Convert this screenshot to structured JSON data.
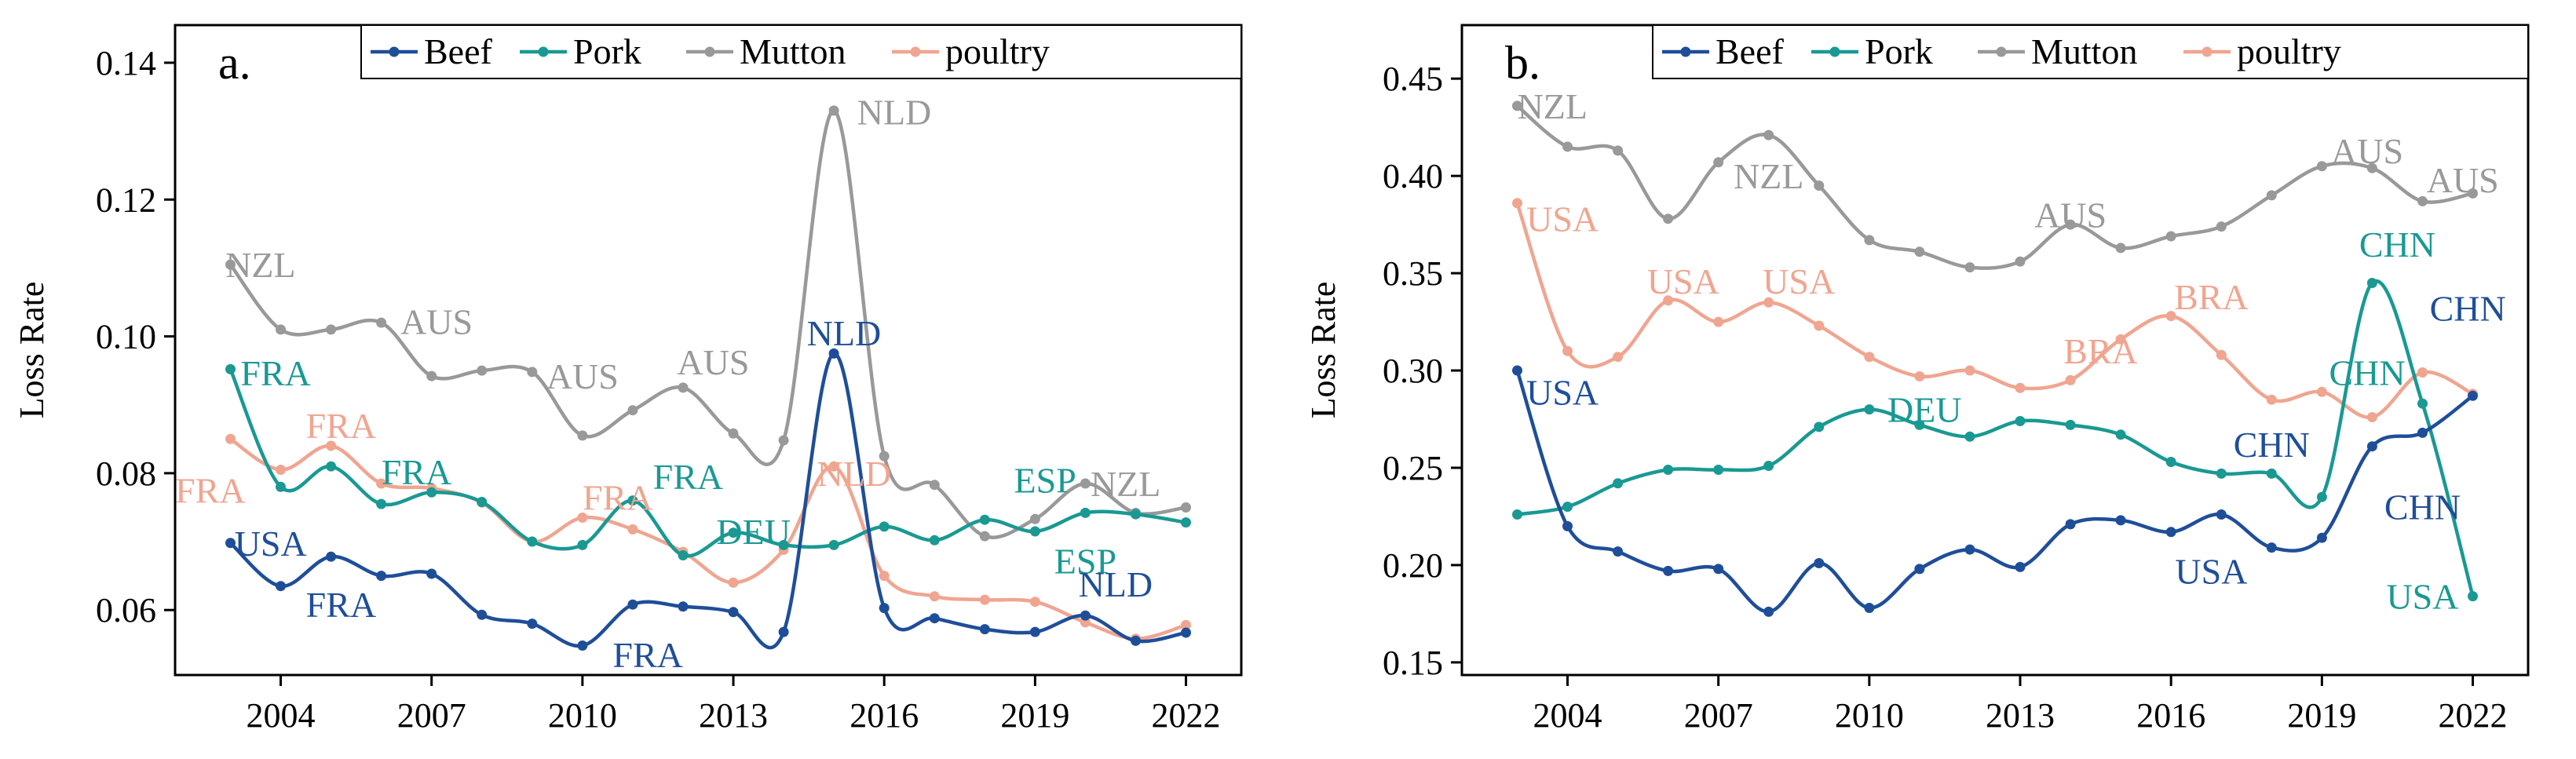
{
  "chart_data": [
    {
      "type": "line",
      "panel_label": "a.",
      "ylabel": "Loss Rate",
      "xlabel": "",
      "x": [
        2003,
        2004,
        2005,
        2006,
        2007,
        2008,
        2009,
        2010,
        2011,
        2012,
        2013,
        2014,
        2015,
        2016,
        2017,
        2018,
        2019,
        2020,
        2021,
        2022
      ],
      "xlim": [
        2001.9,
        2023.1
      ],
      "ylim": [
        0.0505,
        0.1455
      ],
      "xticks": [
        2004,
        2007,
        2010,
        2013,
        2016,
        2019,
        2022
      ],
      "xtick_labels": [
        "2004",
        "2007",
        "2010",
        "2013",
        "2016",
        "2019",
        "2022"
      ],
      "yticks": [
        0.06,
        0.08,
        0.1,
        0.12,
        0.14
      ],
      "ytick_labels": [
        "0.06",
        "0.08",
        "0.10",
        "0.12",
        "0.14"
      ],
      "legend": [
        "Beef",
        "Pork",
        "Mutton",
        "poultry"
      ],
      "legend_position": "top-right",
      "series": [
        {
          "name": "Beef",
          "color": "#1f4e99",
          "values": [
            0.0698,
            0.0635,
            0.0678,
            0.065,
            0.0653,
            0.0593,
            0.058,
            0.0548,
            0.0608,
            0.0605,
            0.0597,
            0.0568,
            0.0975,
            0.0603,
            0.0588,
            0.0572,
            0.0568,
            0.0592,
            0.0555,
            0.0567
          ]
        },
        {
          "name": "Pork",
          "color": "#1a9993",
          "values": [
            0.0952,
            0.078,
            0.081,
            0.0755,
            0.0772,
            0.0758,
            0.07,
            0.0695,
            0.076,
            0.068,
            0.0713,
            0.0695,
            0.0695,
            0.0722,
            0.0702,
            0.0732,
            0.0715,
            0.0742,
            0.074,
            0.0728
          ]
        },
        {
          "name": "Mutton",
          "color": "#999999",
          "values": [
            0.1105,
            0.101,
            0.101,
            0.102,
            0.0942,
            0.095,
            0.0948,
            0.0855,
            0.0892,
            0.0925,
            0.0858,
            0.0848,
            0.133,
            0.0825,
            0.0783,
            0.0708,
            0.0733,
            0.0785,
            0.0742,
            0.075
          ]
        },
        {
          "name": "poultry",
          "color": "#f0a590",
          "values": [
            0.085,
            0.0805,
            0.084,
            0.0785,
            0.0778,
            0.0757,
            0.07,
            0.0735,
            0.0718,
            0.0685,
            0.064,
            0.0688,
            0.081,
            0.065,
            0.062,
            0.0615,
            0.0612,
            0.0582,
            0.0558,
            0.0578
          ]
        }
      ],
      "annotations": [
        {
          "text": "NZL",
          "series": "Mutton",
          "x": 2003.6,
          "y": 0.1105
        },
        {
          "text": "AUS",
          "series": "Mutton",
          "x": 2007.1,
          "y": 0.1022
        },
        {
          "text": "AUS",
          "series": "Mutton",
          "x": 2010.0,
          "y": 0.0942
        },
        {
          "text": "AUS",
          "series": "Mutton",
          "x": 2012.6,
          "y": 0.0963
        },
        {
          "text": "NLD",
          "series": "Mutton",
          "x": 2016.2,
          "y": 0.1328
        },
        {
          "text": "NZL",
          "series": "Mutton",
          "x": 2020.8,
          "y": 0.0785
        },
        {
          "text": "FRA",
          "series": "Pork",
          "x": 2003.9,
          "y": 0.0947
        },
        {
          "text": "FRA",
          "series": "Pork",
          "x": 2006.7,
          "y": 0.0802
        },
        {
          "text": "FRA",
          "series": "Pork",
          "x": 2012.1,
          "y": 0.0795
        },
        {
          "text": "DEU",
          "series": "Pork",
          "x": 2013.4,
          "y": 0.0715
        },
        {
          "text": "ESP",
          "series": "Pork",
          "x": 2019.2,
          "y": 0.079
        },
        {
          "text": "ESP",
          "series": "Pork",
          "x": 2020.0,
          "y": 0.0672
        },
        {
          "text": "FRA",
          "series": "poultry",
          "x": 2005.2,
          "y": 0.087
        },
        {
          "text": "FRA",
          "series": "poultry",
          "x": 2002.6,
          "y": 0.0775
        },
        {
          "text": "FRA",
          "series": "poultry",
          "x": 2010.7,
          "y": 0.0765
        },
        {
          "text": "NLD",
          "series": "poultry",
          "x": 2015.4,
          "y": 0.08
        },
        {
          "text": "USA",
          "series": "Beef",
          "x": 2003.8,
          "y": 0.0698
        },
        {
          "text": "FRA",
          "series": "Beef",
          "x": 2005.2,
          "y": 0.0608
        },
        {
          "text": "FRA",
          "series": "Beef",
          "x": 2011.3,
          "y": 0.0535
        },
        {
          "text": "NLD",
          "series": "Beef",
          "x": 2015.2,
          "y": 0.1005
        },
        {
          "text": "NLD",
          "series": "Beef",
          "x": 2020.6,
          "y": 0.0638
        }
      ]
    },
    {
      "type": "line",
      "panel_label": "b.",
      "ylabel": "Loss Rate",
      "xlabel": "",
      "x": [
        2003,
        2004,
        2005,
        2006,
        2007,
        2008,
        2009,
        2010,
        2011,
        2012,
        2013,
        2014,
        2015,
        2016,
        2017,
        2018,
        2019,
        2020,
        2021,
        2022
      ],
      "xlim": [
        2001.9,
        2023.1
      ],
      "ylim": [
        0.1435,
        0.4775
      ],
      "xticks": [
        2004,
        2007,
        2010,
        2013,
        2016,
        2019,
        2022
      ],
      "xtick_labels": [
        "2004",
        "2007",
        "2010",
        "2013",
        "2016",
        "2019",
        "2022"
      ],
      "yticks": [
        0.15,
        0.2,
        0.25,
        0.3,
        0.35,
        0.4,
        0.45
      ],
      "ytick_labels": [
        "0.15",
        "0.20",
        "0.25",
        "0.30",
        "0.35",
        "0.40",
        "0.45"
      ],
      "legend": [
        "Beef",
        "Pork",
        "Mutton",
        "poultry"
      ],
      "legend_position": "top-right",
      "series": [
        {
          "name": "Beef",
          "color": "#1f4e99",
          "values": [
            0.3,
            0.22,
            0.207,
            0.197,
            0.198,
            0.176,
            0.201,
            0.178,
            0.198,
            0.208,
            0.199,
            0.221,
            0.223,
            0.217,
            0.226,
            0.209,
            0.214,
            0.261,
            0.268,
            0.287
          ]
        },
        {
          "name": "Pork",
          "color": "#1a9993",
          "values": [
            0.226,
            0.23,
            0.242,
            0.249,
            0.249,
            0.251,
            0.271,
            0.28,
            0.272,
            0.266,
            0.274,
            0.272,
            0.267,
            0.253,
            0.247,
            0.247,
            0.235,
            0.345,
            0.283,
            0.184
          ]
        },
        {
          "name": "Mutton",
          "color": "#999999",
          "values": [
            0.436,
            0.415,
            0.413,
            0.378,
            0.407,
            0.421,
            0.395,
            0.367,
            0.361,
            0.353,
            0.356,
            0.375,
            0.363,
            0.369,
            0.374,
            0.39,
            0.405,
            0.404,
            0.387,
            0.391
          ]
        },
        {
          "name": "poultry",
          "color": "#f0a590",
          "values": [
            0.386,
            0.31,
            0.307,
            0.336,
            0.325,
            0.335,
            0.323,
            0.307,
            0.297,
            0.3,
            0.291,
            0.295,
            0.316,
            0.328,
            0.308,
            0.285,
            0.289,
            0.276,
            0.299,
            0.288
          ]
        }
      ],
      "annotations": [
        {
          "text": "NZL",
          "series": "Mutton",
          "x": 2003.7,
          "y": 0.436
        },
        {
          "text": "NZL",
          "series": "Mutton",
          "x": 2008.0,
          "y": 0.4
        },
        {
          "text": "AUS",
          "series": "Mutton",
          "x": 2014.0,
          "y": 0.38
        },
        {
          "text": "AUS",
          "series": "Mutton",
          "x": 2019.9,
          "y": 0.413
        },
        {
          "text": "AUS",
          "series": "Mutton",
          "x": 2021.8,
          "y": 0.398
        },
        {
          "text": "USA",
          "series": "poultry",
          "x": 2003.9,
          "y": 0.378
        },
        {
          "text": "USA",
          "series": "poultry",
          "x": 2006.3,
          "y": 0.346
        },
        {
          "text": "USA",
          "series": "poultry",
          "x": 2008.6,
          "y": 0.346
        },
        {
          "text": "BRA",
          "series": "poultry",
          "x": 2014.6,
          "y": 0.31
        },
        {
          "text": "BRA",
          "series": "poultry",
          "x": 2016.8,
          "y": 0.338
        },
        {
          "text": "DEU",
          "series": "Pork",
          "x": 2011.1,
          "y": 0.28
        },
        {
          "text": "USA",
          "series": "Beef",
          "x": 2003.9,
          "y": 0.289
        },
        {
          "text": "USA",
          "series": "Beef",
          "x": 2016.8,
          "y": 0.197
        },
        {
          "text": "CHN",
          "series": "Pork",
          "x": 2020.5,
          "y": 0.365
        },
        {
          "text": "CHN",
          "series": "Pork",
          "x": 2019.9,
          "y": 0.299
        },
        {
          "text": "CHN",
          "series": "Beef",
          "x": 2021.9,
          "y": 0.332
        },
        {
          "text": "CHN",
          "series": "Beef",
          "x": 2018.0,
          "y": 0.262
        },
        {
          "text": "CHN",
          "series": "Beef",
          "x": 2021.0,
          "y": 0.23
        },
        {
          "text": "USA",
          "series": "Pork",
          "x": 2021.0,
          "y": 0.184
        }
      ]
    }
  ]
}
